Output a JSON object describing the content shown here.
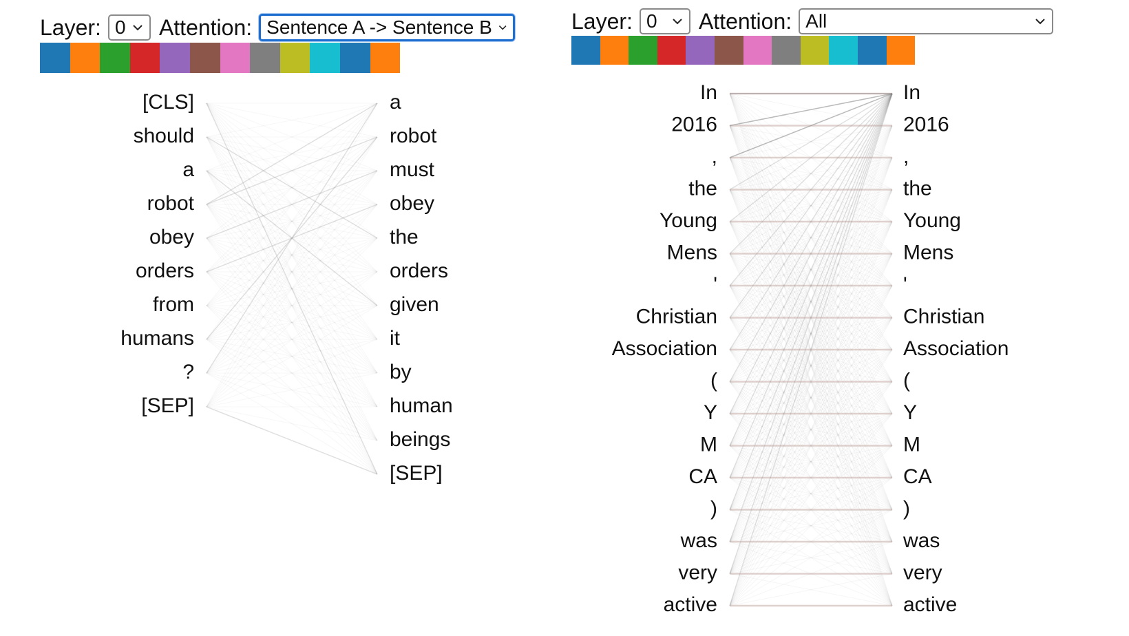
{
  "left": {
    "layer_label": "Layer:",
    "layer_value": "0",
    "attention_label": "Attention:",
    "attention_value": "Sentence A -> Sentence B",
    "head_colors": [
      "#1f77b4",
      "#ff7f0e",
      "#2ca02c",
      "#d62728",
      "#9467bd",
      "#8c564b",
      "#e377c2",
      "#7f7f7f",
      "#bcbd22",
      "#17becf",
      "#1f77b4",
      "#ff7f0e"
    ],
    "left_tokens": [
      "[CLS]",
      "should",
      "a",
      "robot",
      "obey",
      "orders",
      "from",
      "humans",
      "?",
      "[SEP]"
    ],
    "right_tokens": [
      "a",
      "robot",
      "must",
      "obey",
      "the",
      "orders",
      "given",
      "it",
      "by",
      "human",
      "beings",
      "[SEP]"
    ]
  },
  "right": {
    "layer_label": "Layer:",
    "layer_value": "0",
    "attention_label": "Attention:",
    "attention_value": "All",
    "head_colors": [
      "#1f77b4",
      "#ff7f0e",
      "#2ca02c",
      "#d62728",
      "#9467bd",
      "#8c564b",
      "#e377c2",
      "#7f7f7f",
      "#bcbd22",
      "#17becf",
      "#1f77b4",
      "#ff7f0e"
    ],
    "left_tokens": [
      "In",
      "2016",
      ",",
      "the",
      "Young",
      "Mens",
      "'",
      "Christian",
      "Association",
      "(",
      "Y",
      "M",
      "CA",
      ")",
      "was",
      "very",
      "active"
    ],
    "right_tokens": [
      "In",
      "2016",
      ",",
      "the",
      "Young",
      "Mens",
      "'",
      "Christian",
      "Association",
      "(",
      "Y",
      "M",
      "CA",
      ")",
      "was",
      "very",
      "active"
    ]
  }
}
